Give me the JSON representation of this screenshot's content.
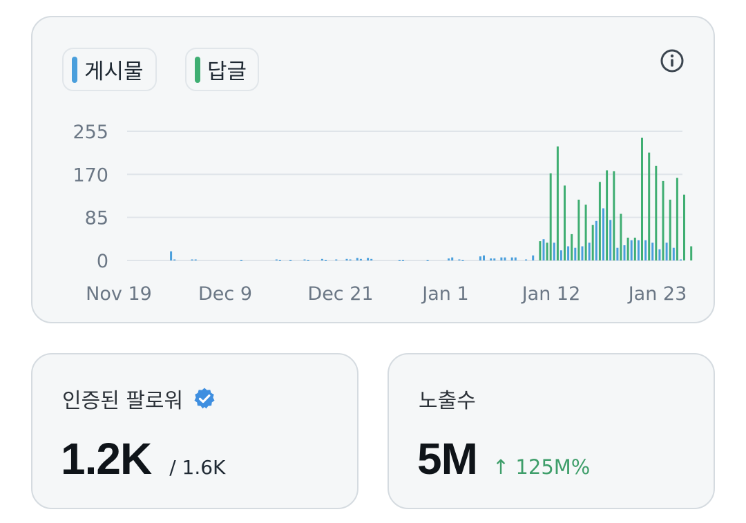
{
  "legend": [
    {
      "label": "게시물",
      "color": "#4a9fdc"
    },
    {
      "label": "답글",
      "color": "#3fae72"
    }
  ],
  "info_icon": "info-icon",
  "chart_data": {
    "type": "bar",
    "y_ticks": [
      "255",
      "170",
      "85",
      "0"
    ],
    "ylim": [
      0,
      255
    ],
    "x_tick_labels": [
      "Nov 19",
      "Dec 9",
      "Dec 21",
      "Jan 1",
      "Jan 12",
      "Jan 23"
    ],
    "grid": true,
    "series": [
      {
        "name": "게시물",
        "color": "#4a9fdc",
        "values": [
          0,
          0,
          0,
          0,
          0,
          0,
          0,
          0,
          0,
          0,
          0,
          0,
          18,
          2,
          0,
          0,
          0,
          0,
          2,
          2,
          0,
          0,
          0,
          0,
          0,
          0,
          0,
          0,
          0,
          0,
          0,
          0,
          1,
          0,
          0,
          0,
          0,
          0,
          0,
          0,
          0,
          0,
          2,
          1,
          0,
          0,
          1,
          0,
          0,
          0,
          2,
          1,
          0,
          0,
          0,
          3,
          1,
          0,
          0,
          2,
          0,
          0,
          3,
          2,
          0,
          5,
          3,
          0,
          5,
          3,
          0,
          0,
          0,
          0,
          0,
          0,
          0,
          1,
          1,
          0,
          0,
          0,
          0,
          0,
          0,
          1,
          0,
          0,
          0,
          0,
          0,
          4,
          6,
          0,
          2,
          1,
          0,
          0,
          0,
          0,
          8,
          10,
          0,
          4,
          4,
          0,
          6,
          6,
          0,
          6,
          6,
          0,
          0,
          2,
          0,
          10,
          0,
          0,
          42,
          0,
          0,
          35,
          0,
          20,
          0,
          28,
          0,
          25,
          0,
          28,
          0,
          35,
          0,
          78,
          0,
          103,
          0,
          80,
          0,
          25,
          0,
          30,
          0,
          40,
          0,
          40,
          0,
          40,
          0,
          35,
          0,
          22,
          0,
          35,
          0,
          25,
          0,
          2
        ]
      },
      {
        "name": "답글",
        "color": "#3fae72",
        "values": [
          0,
          0,
          0,
          0,
          0,
          0,
          0,
          0,
          0,
          0,
          0,
          0,
          0,
          0,
          0,
          0,
          0,
          0,
          0,
          0,
          0,
          0,
          0,
          0,
          0,
          0,
          0,
          0,
          0,
          0,
          0,
          0,
          0,
          0,
          0,
          0,
          0,
          0,
          0,
          0,
          0,
          0,
          0,
          0,
          0,
          0,
          0,
          0,
          0,
          0,
          0,
          0,
          0,
          0,
          0,
          0,
          0,
          0,
          0,
          0,
          0,
          0,
          0,
          0,
          0,
          0,
          0,
          0,
          0,
          0,
          0,
          0,
          0,
          0,
          0,
          0,
          0,
          0,
          0,
          0,
          0,
          0,
          0,
          0,
          0,
          0,
          0,
          0,
          0,
          0,
          0,
          0,
          0,
          0,
          0,
          0,
          0,
          0,
          0,
          0,
          0,
          0,
          0,
          0,
          0,
          0,
          0,
          0,
          0,
          0,
          0,
          0,
          0,
          0,
          0,
          0,
          0,
          38,
          0,
          35,
          172,
          0,
          225,
          0,
          148,
          0,
          52,
          0,
          120,
          0,
          110,
          0,
          70,
          0,
          155,
          0,
          178,
          0,
          176,
          0,
          92,
          0,
          45,
          0,
          45,
          0,
          242,
          0,
          213,
          0,
          187,
          0,
          157,
          0,
          120,
          0,
          163,
          0,
          130,
          0,
          28
        ]
      }
    ]
  },
  "followers": {
    "title": "인증된 팔로워",
    "value": "1.2K",
    "total": "/ 1.6K",
    "verified_icon": "verified-badge-icon"
  },
  "impressions": {
    "title": "노출수",
    "value": "5M",
    "change": "↑ 125M%",
    "change_color": "#3e9e6a"
  }
}
